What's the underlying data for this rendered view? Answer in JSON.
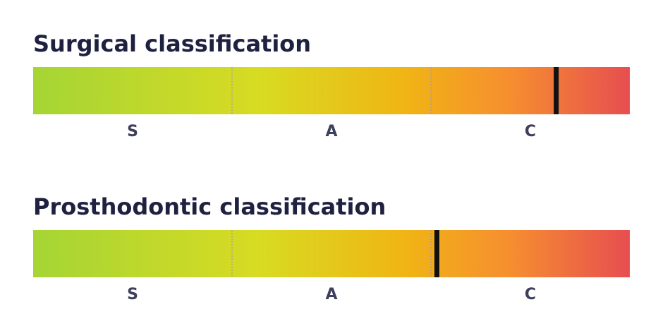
{
  "chart_data": [
    {
      "type": "gauge",
      "title": "Surgical classification",
      "categories": [
        "S",
        "A",
        "C"
      ],
      "value": 2.63,
      "xlim": [
        0,
        3
      ]
    },
    {
      "type": "gauge",
      "title": "Prosthodontic classification",
      "categories": [
        "S",
        "A",
        "C"
      ],
      "value": 2.03,
      "xlim": [
        0,
        3
      ]
    }
  ]
}
